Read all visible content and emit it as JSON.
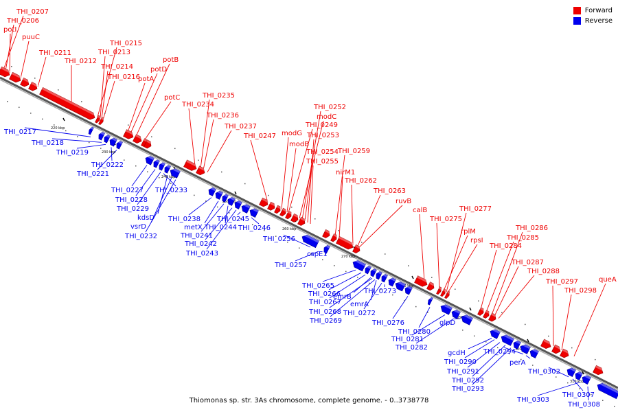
{
  "caption": "Thiomonas sp. str. 3As chromosome, complete genome. - 0..3738778",
  "legend": [
    {
      "label": "Forward",
      "color": "#ee0000"
    },
    {
      "label": "Reverse",
      "color": "#0000ee"
    }
  ],
  "colors": {
    "forward": "#ee0000",
    "reverse": "#0000ee",
    "backbone": "#555555"
  },
  "ticks": [
    "220 kbp",
    "230 kbp",
    "240 kbp",
    "250 kbp",
    "260 kbp",
    "270 kbp",
    "280 kbp",
    "290 kbp",
    "300 kbp",
    "310 kbp"
  ],
  "forward_labels": [
    "THI_0207",
    "THI_0206",
    "potI",
    "puuC",
    "THI_0211",
    "THI_0212",
    "THI_0215",
    "THI_0213",
    "THI_0214",
    "THI_0216",
    "potB",
    "potD",
    "potA",
    "potC",
    "THI_0235",
    "THI_0234",
    "THI_0236",
    "THI_0237",
    "THI_0247",
    "THI_0252",
    "modC",
    "THI_0249",
    "modG",
    "THI_0253",
    "modB",
    "THI_0254",
    "THI_0255",
    "THI_0259",
    "nirM1",
    "THI_0262",
    "THI_0263",
    "ruvB",
    "calB",
    "THI_0277",
    "THI_0275",
    "rplM",
    "rpsI",
    "THI_0286",
    "THI_0285",
    "THI_0284",
    "THI_0287",
    "THI_0288",
    "THI_0297",
    "queA",
    "THI_0298"
  ],
  "reverse_labels": [
    "THI_0217",
    "THI_0218",
    "THI_0219",
    "THI_0222",
    "THI_0221",
    "THI_0227",
    "THI_0233",
    "THI_0228",
    "THI_0229",
    "kdsD",
    "vsrD",
    "THI_0232",
    "THI_0238",
    "THI_0245",
    "metX",
    "THI_0244",
    "THI_0246",
    "THI_0241",
    "THI_0242",
    "THI_0243",
    "THI_0256",
    "cspE1",
    "THI_0257",
    "THI_0265",
    "THI_0266",
    "emrB",
    "THI_0267",
    "emrA",
    "THI_0273",
    "THI_0268",
    "THI_0272",
    "THI_0269",
    "THI_0276",
    "THI_0280",
    "THI_0281",
    "glpD",
    "THI_0282",
    "gcdH",
    "THI_0294",
    "THI_0290",
    "perA",
    "THI_0291",
    "THI_0302",
    "THI_0292",
    "THI_0293",
    "THI_0307",
    "THI_0303",
    "THI_0308"
  ]
}
